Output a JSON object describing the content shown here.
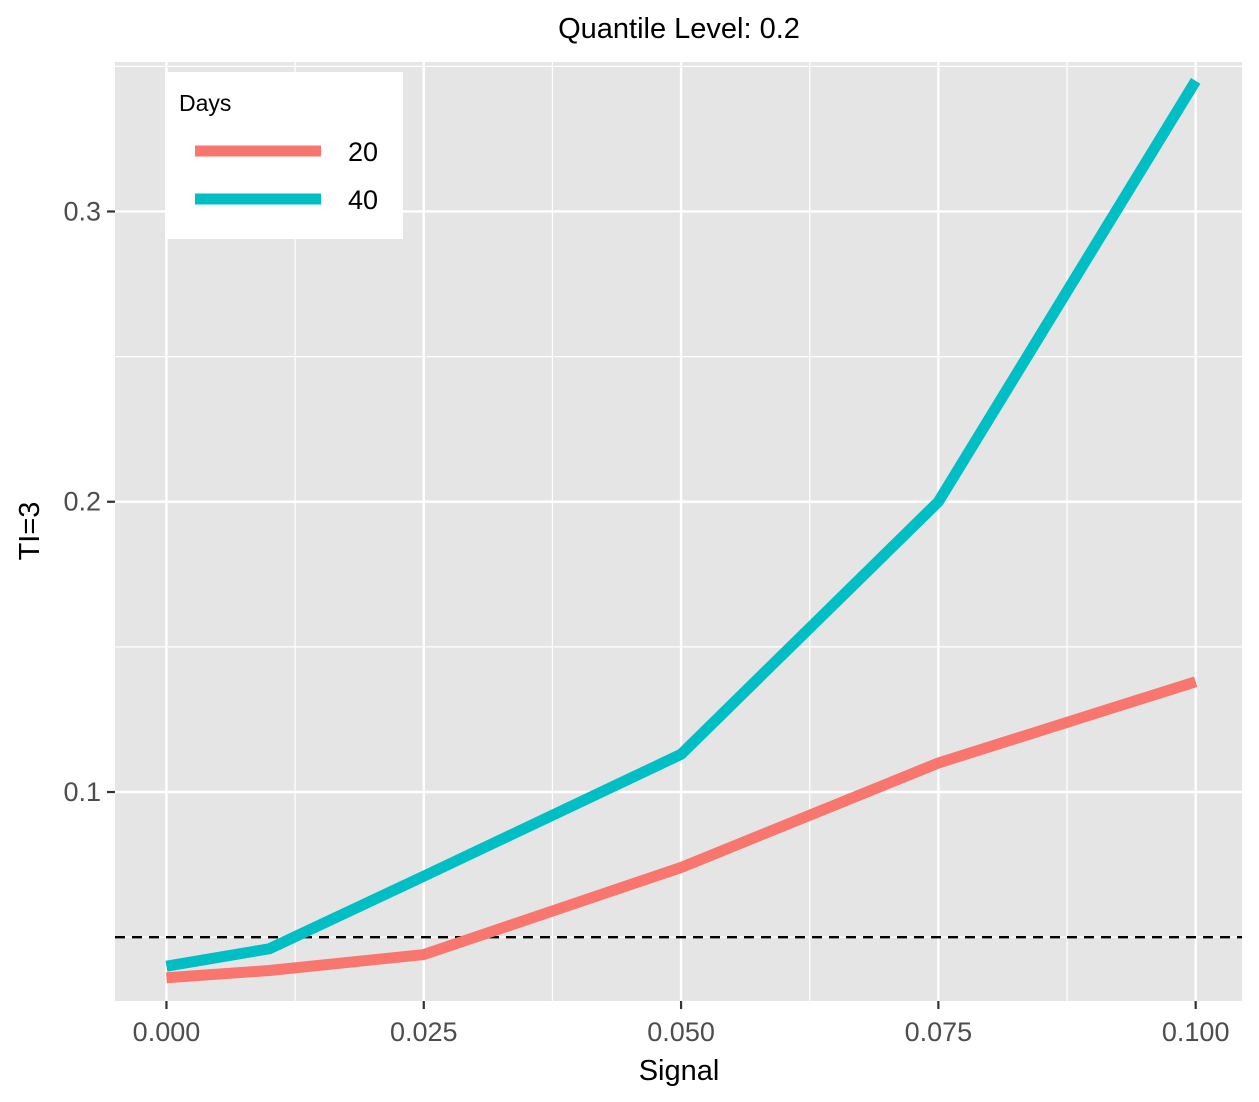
{
  "chart_data": {
    "type": "line",
    "title": "Quantile Level: 0.2",
    "xlabel": "Signal",
    "ylabel": "TI=3",
    "x": [
      0,
      0.01,
      0.025,
      0.05,
      0.075,
      0.1
    ],
    "xlim": [
      -0.005,
      0.1045
    ],
    "ylim": [
      0.028,
      0.3515
    ],
    "x_ticks": [
      0,
      0.025,
      0.05,
      0.075,
      0.1
    ],
    "x_tick_labels": [
      "0.000",
      "0.025",
      "0.050",
      "0.075",
      "0.100"
    ],
    "y_ticks": [
      0.1,
      0.2,
      0.3
    ],
    "y_tick_labels": [
      "0.1",
      "0.2",
      "0.3"
    ],
    "grid": true,
    "legend": {
      "title": "Days",
      "position": "top-left"
    },
    "series": [
      {
        "name": "20",
        "color": "#F8766D",
        "values": [
          0.036,
          0.0385,
          0.044,
          0.074,
          0.11,
          0.138
        ]
      },
      {
        "name": "40",
        "color": "#00BFC4",
        "values": [
          0.04,
          0.046,
          0.071,
          0.113,
          0.2,
          0.345
        ]
      }
    ],
    "reference_line": {
      "y": 0.05,
      "style": "dashed",
      "color": "#000000"
    },
    "panel_background": "#E5E5E5",
    "grid_color": "#FFFFFF"
  }
}
